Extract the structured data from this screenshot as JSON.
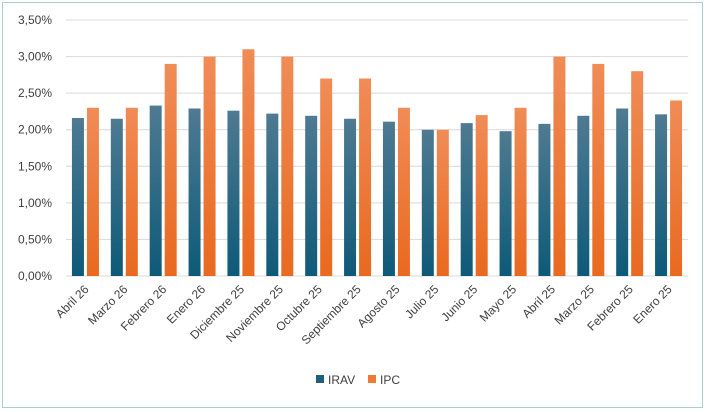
{
  "chart_data": {
    "type": "bar",
    "categories": [
      "Abril 26",
      "Marzo 26",
      "Febrero 26",
      "Enero 26",
      "Diciembre 25",
      "Noviembre 25",
      "Octubre 25",
      "Septiembre 25",
      "Agosto 25",
      "Julio 25",
      "Junio 25",
      "Mayo 25",
      "Abril 25",
      "Marzo 25",
      "Febrero 25",
      "Enero 25"
    ],
    "series": [
      {
        "name": "IRAV",
        "color": "#1f5f7a",
        "values": [
          2.16,
          2.15,
          2.33,
          2.29,
          2.26,
          2.22,
          2.19,
          2.15,
          2.11,
          2.0,
          2.09,
          1.98,
          2.08,
          2.19,
          2.29,
          2.21
        ]
      },
      {
        "name": "IPC",
        "color": "#ef7a34",
        "values": [
          2.3,
          2.3,
          2.9,
          3.0,
          3.1,
          3.0,
          2.7,
          2.7,
          2.3,
          2.0,
          2.2,
          2.3,
          3.0,
          2.9,
          2.8,
          2.4
        ]
      }
    ],
    "y_ticks": [
      "0,00%",
      "0,50%",
      "1,00%",
      "1,50%",
      "2,00%",
      "2,50%",
      "3,00%",
      "3,50%"
    ],
    "ylim": [
      0,
      3.5
    ],
    "grid": true,
    "legend_position": "bottom"
  }
}
